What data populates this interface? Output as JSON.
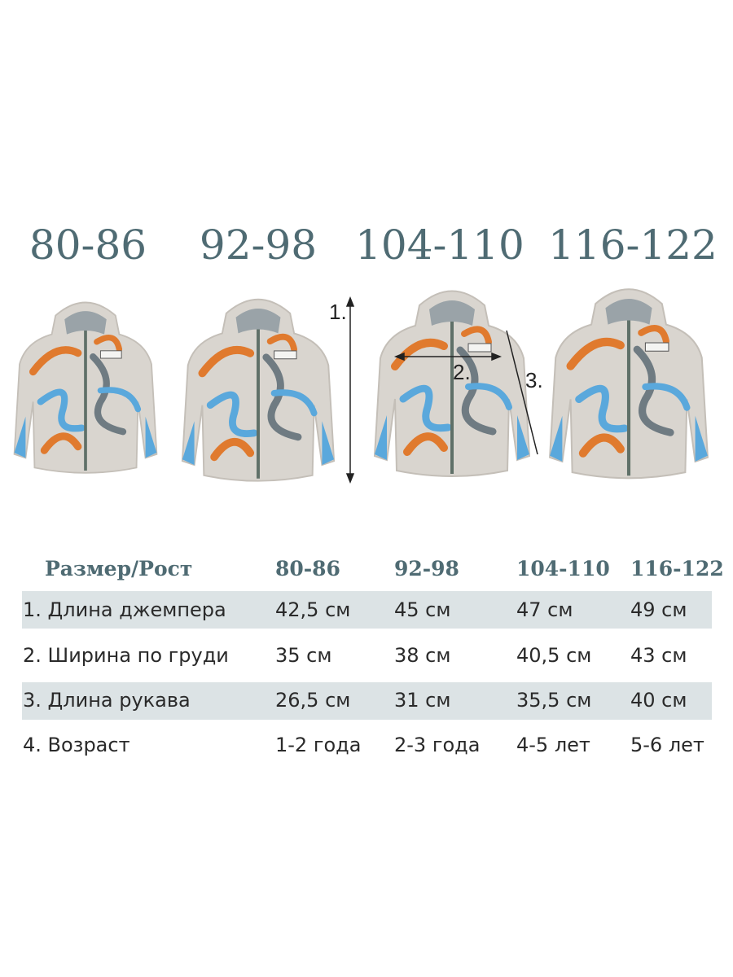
{
  "sizes": [
    "80-86",
    "92-98",
    "104-110",
    "116-122"
  ],
  "measure_labels": [
    "1.",
    "2.",
    "3."
  ],
  "table": {
    "header": [
      "Размер/Рост",
      "80-86",
      "92-98",
      "104-110",
      "116-122"
    ],
    "rows": [
      [
        "1. Длина джемпера",
        "42,5 см",
        "45 см",
        "47 см",
        "49 см"
      ],
      [
        "2. Ширина по груди",
        "35 см",
        "38 см",
        "40,5 см",
        "43 см"
      ],
      [
        "3. Длина рукава",
        "26,5 см",
        "31 см",
        "35,5 см",
        "40 см"
      ],
      [
        "4. Возраст",
        "1-2 года",
        "2-3 года",
        "4-5 лет",
        "5-6 лет"
      ]
    ]
  }
}
